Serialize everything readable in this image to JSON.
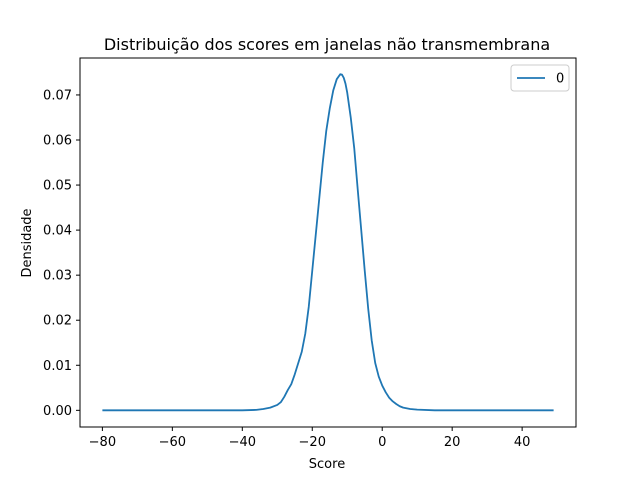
{
  "chart_data": {
    "type": "line",
    "title": "Distribuição dos scores em janelas não transmembrana",
    "xlabel": "Score",
    "ylabel": "Densidade",
    "xlim": [
      -86.4,
      55.4
    ],
    "ylim": [
      -0.0037,
      0.0782
    ],
    "xticks": [
      -80,
      -60,
      -40,
      -20,
      0,
      20,
      40
    ],
    "xtick_labels": [
      "−80",
      "−60",
      "−40",
      "−20",
      "0",
      "20",
      "40"
    ],
    "yticks": [
      0.0,
      0.01,
      0.02,
      0.03,
      0.04,
      0.05,
      0.06,
      0.07
    ],
    "ytick_labels": [
      "0.00",
      "0.01",
      "0.02",
      "0.03",
      "0.04",
      "0.05",
      "0.06",
      "0.07"
    ],
    "grid": false,
    "legend_position": "top-right",
    "series": [
      {
        "name": "0",
        "color": "#1f77b4",
        "x": [
          -80,
          -70,
          -60,
          -50,
          -40,
          -36,
          -34,
          -32,
          -30,
          -29,
          -28,
          -27,
          -26,
          -25,
          -24,
          -23,
          -22,
          -21,
          -20,
          -19,
          -18,
          -17,
          -16,
          -15,
          -14,
          -13,
          -12,
          -11.5,
          -11,
          -10.5,
          -10,
          -9,
          -8,
          -7,
          -6,
          -5,
          -4,
          -3,
          -2,
          -1,
          0,
          1,
          2,
          3,
          4,
          5,
          6,
          8,
          10,
          15,
          20,
          30,
          40,
          49
        ],
        "y": [
          0.0,
          0.0,
          0.0,
          0.0,
          0.0,
          0.0001,
          0.0003,
          0.0006,
          0.0012,
          0.0018,
          0.003,
          0.0045,
          0.0058,
          0.008,
          0.0105,
          0.013,
          0.017,
          0.023,
          0.031,
          0.039,
          0.047,
          0.055,
          0.062,
          0.067,
          0.071,
          0.0735,
          0.0746,
          0.0745,
          0.0738,
          0.0725,
          0.0705,
          0.065,
          0.0582,
          0.049,
          0.04,
          0.031,
          0.0225,
          0.0155,
          0.0105,
          0.0075,
          0.0055,
          0.004,
          0.0028,
          0.002,
          0.0014,
          0.0009,
          0.0006,
          0.0003,
          0.00015,
          0.0,
          0.0,
          0.0,
          0.0,
          0.0
        ]
      }
    ]
  }
}
